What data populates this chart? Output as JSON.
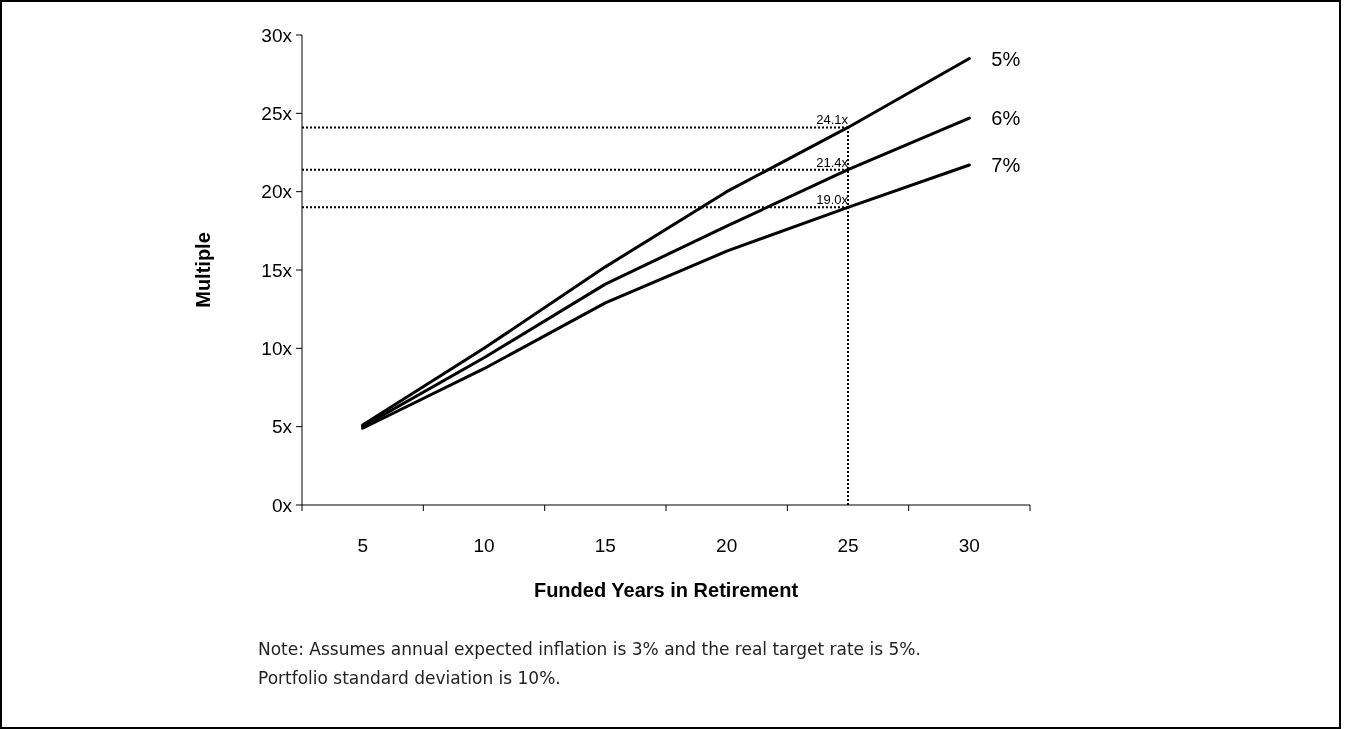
{
  "chart_data": {
    "type": "line",
    "xlabel": "Funded Years in Retirement",
    "ylabel": "Multiple",
    "categories": [
      "5",
      "10",
      "15",
      "20",
      "25",
      "30"
    ],
    "series": [
      {
        "name": "5%",
        "color": "#000000",
        "values": [
          5.1,
          10.0,
          15.2,
          20.0,
          24.1,
          28.5
        ]
      },
      {
        "name": "6%",
        "color": "#000000",
        "values": [
          5.0,
          9.4,
          14.1,
          17.8,
          21.4,
          24.7
        ]
      },
      {
        "name": "7%",
        "color": "#000000",
        "values": [
          4.9,
          8.7,
          12.9,
          16.2,
          19.0,
          21.7
        ]
      }
    ],
    "ylim": [
      0,
      30
    ],
    "yticks": [
      {
        "value": 0,
        "label": "0x"
      },
      {
        "value": 5,
        "label": "5x"
      },
      {
        "value": 10,
        "label": "10x"
      },
      {
        "value": 15,
        "label": "15x"
      },
      {
        "value": 20,
        "label": "20x"
      },
      {
        "value": 25,
        "label": "25x"
      },
      {
        "value": 30,
        "label": "30x"
      }
    ],
    "grid": false,
    "marker": "none",
    "line_style": "solid",
    "ref_lines": [
      {
        "axis": "x",
        "value": "25",
        "line_style": "dotted",
        "color": "#000000"
      }
    ],
    "annotations": [
      {
        "text": "24.1x",
        "x": "25",
        "y": 24.1
      },
      {
        "text": "21.4x",
        "x": "25",
        "y": 21.4
      },
      {
        "text": "19.0x",
        "x": "25",
        "y": 19.0
      },
      "Note: Assumes annual expected inflation is 3% and the real target rate is 5%.\nPortfolio standard deviation is 10%."
    ]
  }
}
